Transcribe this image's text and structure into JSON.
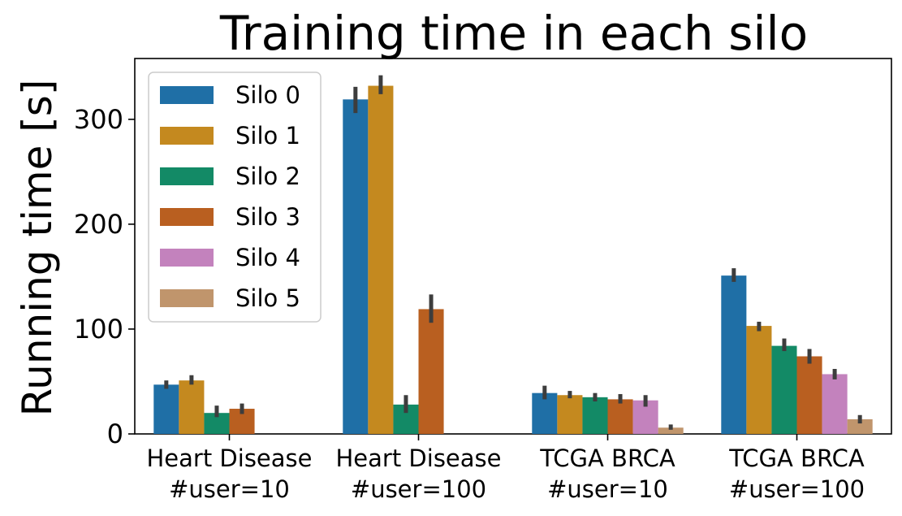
{
  "chart_data": {
    "type": "bar",
    "title": "Training time in each silo",
    "xlabel": "",
    "ylabel": "Running time [s]",
    "ylim": [
      0,
      358
    ],
    "yticks": [
      0,
      100,
      200,
      300
    ],
    "categories": [
      [
        "Heart Disease",
        "#user=10"
      ],
      [
        "Heart Disease",
        "#user=100"
      ],
      [
        "TCGA BRCA",
        "#user=10"
      ],
      [
        "TCGA BRCA",
        "#user=100"
      ]
    ],
    "legend_position": "top-left",
    "grid": false,
    "series": [
      {
        "name": "Silo 0",
        "color": "#1f6fa6",
        "values": [
          47,
          319,
          39,
          151
        ],
        "errors": [
          [
            43,
            51
          ],
          [
            306,
            331
          ],
          [
            33,
            46
          ],
          [
            145,
            158
          ]
        ]
      },
      {
        "name": "Silo 1",
        "color": "#c4891f",
        "values": [
          51,
          332,
          37,
          103
        ],
        "errors": [
          [
            47,
            56
          ],
          [
            324,
            342
          ],
          [
            34,
            41
          ],
          [
            98,
            107
          ]
        ]
      },
      {
        "name": "Silo 2",
        "color": "#138a66",
        "values": [
          20,
          28,
          35,
          84
        ],
        "errors": [
          [
            16,
            27
          ],
          [
            20,
            37
          ],
          [
            31,
            39
          ],
          [
            79,
            91
          ]
        ]
      },
      {
        "name": "Silo 3",
        "color": "#b95f20",
        "values": [
          24,
          null,
          33,
          74
        ],
        "errors": [
          [
            19,
            29
          ],
          null,
          [
            29,
            38
          ],
          [
            67,
            81
          ]
        ],
        "heart_100_value": 119,
        "heart_100_error": [
          106,
          133
        ]
      },
      {
        "name": "Silo 4",
        "color": "#c382bd",
        "values": [
          null,
          null,
          32,
          57
        ],
        "errors": [
          null,
          null,
          [
            26,
            37
          ],
          [
            52,
            62
          ]
        ]
      },
      {
        "name": "Silo 5",
        "color": "#c0956c",
        "values": [
          null,
          null,
          6,
          14
        ],
        "errors": [
          null,
          null,
          [
            4,
            9
          ],
          [
            10,
            18
          ]
        ]
      }
    ]
  }
}
